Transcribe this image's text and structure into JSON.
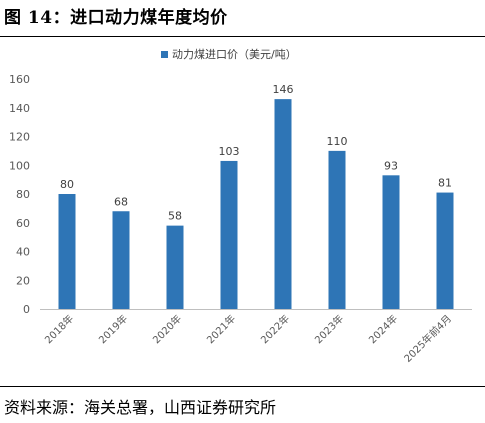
{
  "figure": {
    "title": "图 14：进口动力煤年度均价",
    "source": "资料来源：海关总署，山西证券研究所"
  },
  "chart_data": {
    "type": "bar",
    "categories": [
      "2018年",
      "2019年",
      "2020年",
      "2021年",
      "2022年",
      "2023年",
      "2024年",
      "2025年前4月"
    ],
    "series": [
      {
        "name": "动力煤进口价（美元/吨）",
        "values": [
          80,
          68,
          58,
          103,
          146,
          110,
          93,
          81
        ],
        "color": "#2E75B6"
      }
    ],
    "ylim": [
      0,
      160
    ],
    "yticks": [
      0,
      20,
      40,
      60,
      80,
      100,
      120,
      140,
      160
    ],
    "grid": false,
    "legend": "top-center",
    "data_labels": true
  }
}
